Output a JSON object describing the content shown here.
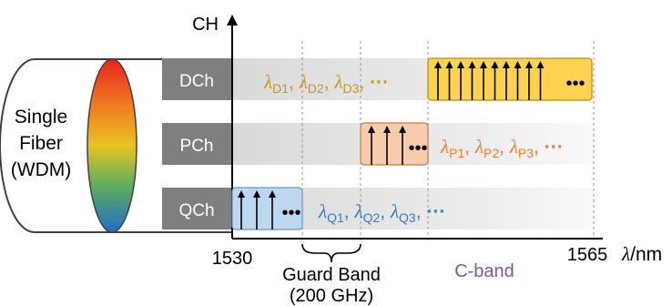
{
  "colors": {
    "dch": "#C49A1C",
    "pch": "#F07D2C",
    "qch": "#2F7FC4",
    "cband": "#7A58A6",
    "dch_box": "#FDD24E",
    "pch_box": "#F8CBAD",
    "qch_box": "#BDD7EE",
    "label_box": "#7F7F7F"
  },
  "axis": {
    "y_label": "CH",
    "x_label": "λ/nm",
    "tick_start": "1530",
    "tick_end": "1565"
  },
  "fiber": {
    "line1": "Single",
    "line2": "Fiber",
    "line3": "(WDM)"
  },
  "channels": [
    {
      "name": "DCh",
      "prefix": "D",
      "lambdas": [
        "D1",
        "D2",
        "D3"
      ],
      "ellipsis": "···"
    },
    {
      "name": "PCh",
      "prefix": "P",
      "lambdas": [
        "P1",
        "P2",
        "P3"
      ],
      "ellipsis": "···"
    },
    {
      "name": "QCh",
      "prefix": "Q",
      "lambdas": [
        "Q1",
        "Q2",
        "Q3"
      ],
      "ellipsis": "···"
    }
  ],
  "lambda_symbol": "λ",
  "box_ellipsis": "•••",
  "guard_band": {
    "line1": "Guard Band",
    "line2": "(200 GHz)"
  },
  "c_band": "C-band"
}
